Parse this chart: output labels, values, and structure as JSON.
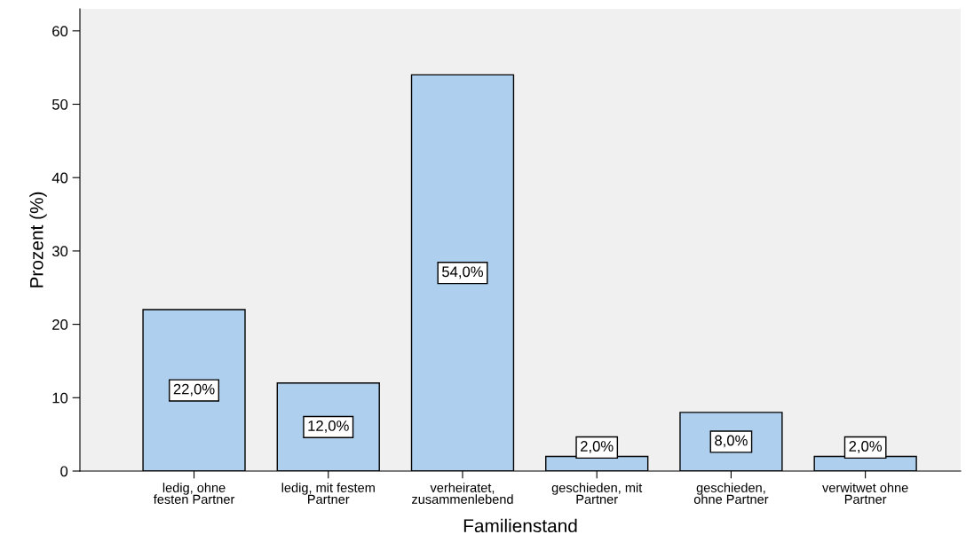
{
  "chart_data": {
    "type": "bar",
    "xlabel": "Familienstand",
    "ylabel": "Prozent (%)",
    "categories": [
      "ledig, ohne\nfesten Partner",
      "ledig, mit festem\nPartner",
      "verheiratet,\nzusammenlebend",
      "geschieden, mit\nPartner",
      "geschieden,\nohne Partner",
      "verwitwet ohne\nPartner"
    ],
    "values": [
      22,
      12,
      54,
      2,
      8,
      2
    ],
    "value_labels": [
      "22,0%",
      "12,0%",
      "54,0%",
      "2,0%",
      "8,0%",
      "2,0%"
    ],
    "color": "#aed0ee",
    "ylim": [
      0,
      63
    ],
    "yticks": [
      0,
      10,
      20,
      30,
      40,
      50,
      60
    ],
    "grid": false,
    "legend": false
  }
}
